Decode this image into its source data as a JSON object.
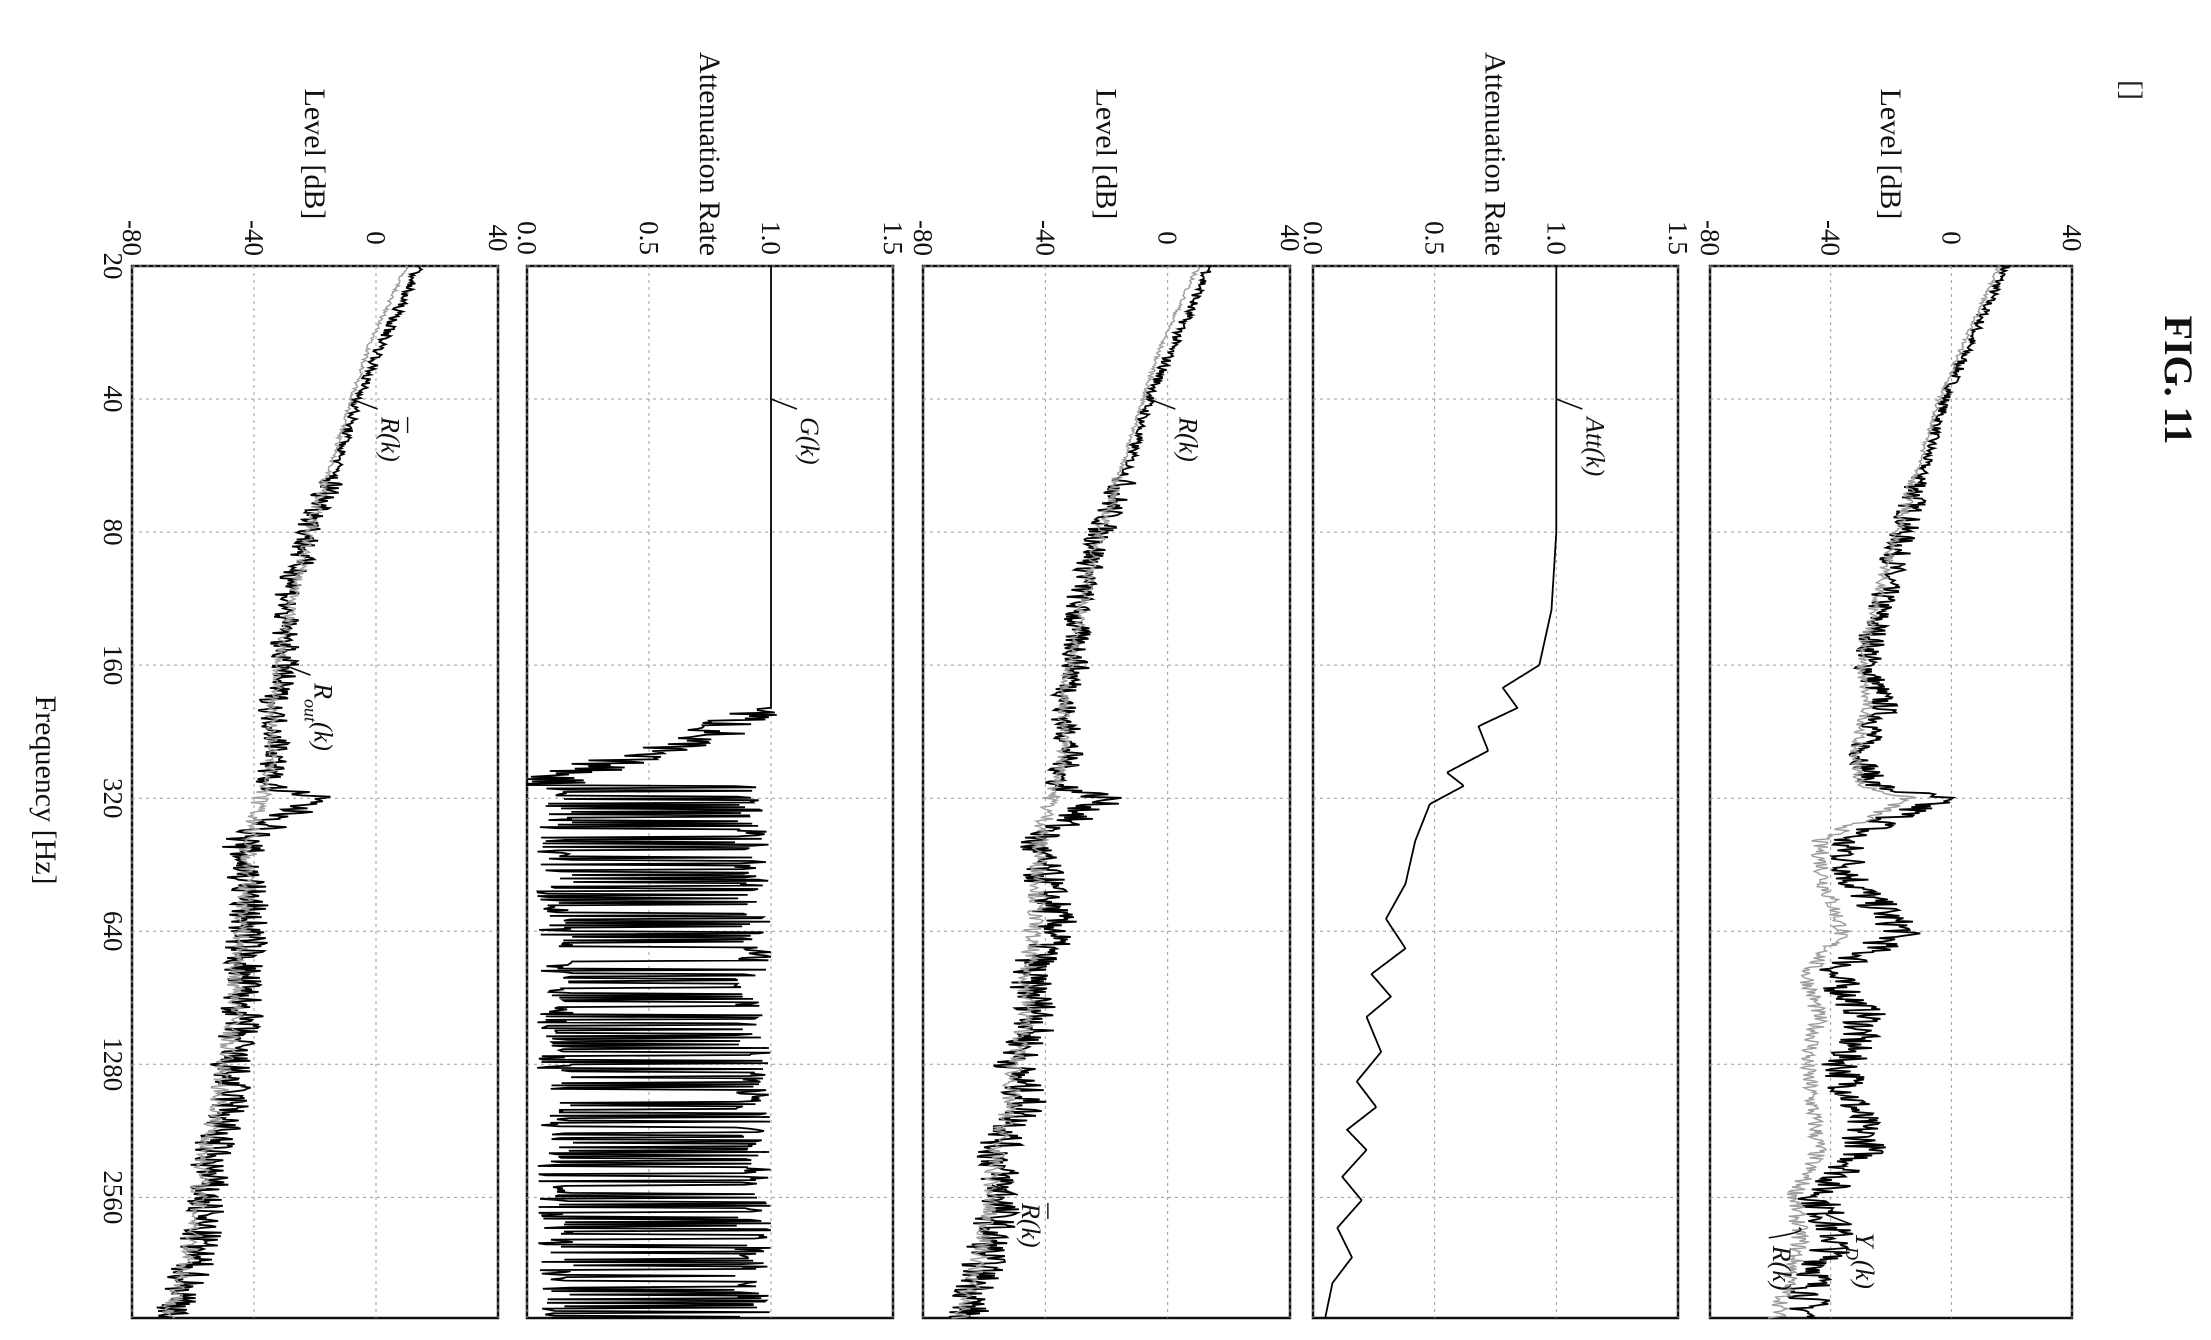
{
  "figure": {
    "title": "FIG. 11",
    "corner_mark": "[]",
    "x_axis_label": "Frequency [Hz]",
    "x_ticks": [
      "20",
      "40",
      "80",
      "160",
      "320",
      "640",
      "1280",
      "2560"
    ]
  },
  "chart_data": [
    {
      "type": "line",
      "panel": 1,
      "ylabel": "Level [dB]",
      "ylim": [
        -80,
        40
      ],
      "yticks": [
        "-80",
        "-40",
        "0",
        "40"
      ],
      "xscale": "log2",
      "xlim": [
        20,
        4800
      ],
      "grid": true,
      "series": [
        {
          "name": "Y_D(k)",
          "label_main": "Y",
          "label_sub": "D",
          "label_end": "(k)",
          "color": "#000000",
          "x": [
            20,
            30,
            40,
            60,
            80,
            120,
            160,
            200,
            250,
            300,
            320,
            400,
            500,
            640,
            800,
            1000,
            1280,
            1600,
            2000,
            2560,
            3200,
            4000,
            4800
          ],
          "y": [
            18,
            6,
            -2,
            -10,
            -16,
            -24,
            -28,
            -22,
            -30,
            -26,
            -4,
            -36,
            -32,
            -16,
            -40,
            -28,
            -36,
            -32,
            -28,
            -44,
            -38,
            -46,
            -48
          ]
        },
        {
          "name": "R(k)",
          "label_main": "R",
          "label_sub": "",
          "label_end": "(k)",
          "color": "#9c9c9c",
          "x": [
            20,
            30,
            40,
            60,
            80,
            120,
            160,
            200,
            250,
            300,
            320,
            400,
            500,
            640,
            800,
            1000,
            1280,
            1600,
            2000,
            2560,
            3200,
            4000,
            4800
          ],
          "y": [
            16,
            4,
            -4,
            -12,
            -18,
            -26,
            -30,
            -28,
            -32,
            -30,
            -14,
            -44,
            -42,
            -36,
            -48,
            -44,
            -48,
            -46,
            -44,
            -52,
            -50,
            -54,
            -58
          ]
        }
      ]
    },
    {
      "type": "line",
      "panel": 2,
      "ylabel": "Attenuation Rate",
      "ylim": [
        0.0,
        1.5
      ],
      "yticks": [
        "1.5",
        "1.0",
        "0.5",
        "0.0"
      ],
      "xscale": "log2",
      "xlim": [
        20,
        4800
      ],
      "grid": true,
      "series": [
        {
          "name": "Att(k)",
          "label_main": "Att",
          "label_sub": "",
          "label_end": "(k)",
          "color": "#000000",
          "x": [
            20,
            40,
            80,
            120,
            160,
            180,
            200,
            220,
            250,
            280,
            300,
            330,
            400,
            500,
            600,
            700,
            800,
            900,
            1000,
            1200,
            1400,
            1600,
            1800,
            2000,
            2300,
            2600,
            3000,
            3500,
            4000,
            4800
          ],
          "y": [
            1.0,
            1.0,
            1.0,
            0.98,
            0.93,
            0.78,
            0.84,
            0.68,
            0.72,
            0.55,
            0.62,
            0.48,
            0.42,
            0.38,
            0.3,
            0.38,
            0.24,
            0.32,
            0.22,
            0.28,
            0.18,
            0.26,
            0.14,
            0.22,
            0.12,
            0.2,
            0.1,
            0.16,
            0.08,
            0.05
          ]
        }
      ]
    },
    {
      "type": "line",
      "panel": 3,
      "ylabel": "Level [dB]",
      "ylim": [
        -80,
        40
      ],
      "yticks": [
        "-80",
        "-40",
        "0",
        "40"
      ],
      "xscale": "log2",
      "xlim": [
        20,
        4800
      ],
      "grid": true,
      "series": [
        {
          "name": "R(k) level",
          "label_main": "R",
          "label_sub": "",
          "label_end": "(k)",
          "color": "#000000",
          "x": [
            20,
            30,
            40,
            60,
            80,
            120,
            160,
            200,
            250,
            300,
            320,
            400,
            500,
            640,
            800,
            1000,
            1280,
            1600,
            2000,
            2560,
            3200,
            4000,
            4800
          ],
          "y": [
            14,
            2,
            -6,
            -14,
            -22,
            -30,
            -30,
            -34,
            -32,
            -36,
            -20,
            -44,
            -40,
            -36,
            -46,
            -42,
            -50,
            -46,
            -56,
            -54,
            -58,
            -62,
            -66
          ]
        },
        {
          "name": "R-bar(k)",
          "label_main": "R",
          "label_sub": "",
          "label_end": "(k)",
          "label_bar": true,
          "color": "#9c9c9c",
          "x": [
            20,
            30,
            40,
            60,
            80,
            120,
            160,
            200,
            250,
            300,
            320,
            400,
            500,
            640,
            800,
            1000,
            1280,
            1600,
            2000,
            2560,
            3200,
            4000,
            4800
          ],
          "y": [
            10,
            -2,
            -8,
            -16,
            -22,
            -28,
            -32,
            -34,
            -34,
            -36,
            -38,
            -42,
            -42,
            -44,
            -46,
            -46,
            -50,
            -52,
            -56,
            -58,
            -60,
            -64,
            -68
          ]
        }
      ]
    },
    {
      "type": "line",
      "panel": 4,
      "ylabel": "Attenuation Rate",
      "ylim": [
        0.0,
        1.5
      ],
      "yticks": [
        "1.5",
        "1.0",
        "0.5",
        "0.0"
      ],
      "xscale": "log2",
      "xlim": [
        20,
        4800
      ],
      "grid": true,
      "series": [
        {
          "name": "G(k)",
          "label_main": "G",
          "label_sub": "",
          "label_end": "(k)",
          "color": "#000000",
          "x": [
            20,
            40,
            80,
            160,
            200,
            210,
            230,
            260,
            290,
            320,
            360,
            400,
            460,
            520,
            600,
            640,
            700,
            800,
            900,
            1000,
            1100,
            1280,
            1450,
            1600,
            1800,
            2000,
            2300,
            2560,
            2900,
            3300,
            3800,
            4300,
            4800
          ],
          "y": [
            1.0,
            1.0,
            1.0,
            1.0,
            1.0,
            0.88,
            0.75,
            0.4,
            0.12,
            0.05,
            0.9,
            0.05,
            0.9,
            0.05,
            0.9,
            0.05,
            0.9,
            0.05,
            0.9,
            0.05,
            0.9,
            0.05,
            0.9,
            0.05,
            0.9,
            0.05,
            0.9,
            0.05,
            0.9,
            0.05,
            0.9,
            0.05,
            0.9
          ]
        }
      ]
    },
    {
      "type": "line",
      "panel": 5,
      "ylabel": "Level [dB]",
      "ylim": [
        -80,
        40
      ],
      "yticks": [
        "-80",
        "-40",
        "0",
        "40"
      ],
      "xscale": "log2",
      "xlim": [
        20,
        4800
      ],
      "grid": true,
      "series": [
        {
          "name": "R_out(k)",
          "label_main": "R",
          "label_sub": "out",
          "label_end": "(k)",
          "color": "#000000",
          "x": [
            20,
            30,
            40,
            60,
            80,
            120,
            160,
            200,
            250,
            300,
            320,
            400,
            500,
            640,
            800,
            1000,
            1280,
            1600,
            2000,
            2560,
            3200,
            4000,
            4800
          ],
          "y": [
            14,
            2,
            -6,
            -14,
            -22,
            -30,
            -30,
            -34,
            -32,
            -36,
            -20,
            -44,
            -42,
            -42,
            -44,
            -44,
            -48,
            -48,
            -54,
            -56,
            -58,
            -62,
            -66
          ]
        },
        {
          "name": "R-bar(k)",
          "label_main": "R",
          "label_sub": "",
          "label_end": "(k)",
          "label_bar": true,
          "color": "#9c9c9c",
          "x": [
            20,
            30,
            40,
            60,
            80,
            120,
            160,
            200,
            250,
            300,
            320,
            400,
            500,
            640,
            800,
            1000,
            1280,
            1600,
            2000,
            2560,
            3200,
            4000,
            4800
          ],
          "y": [
            10,
            -2,
            -8,
            -16,
            -22,
            -28,
            -32,
            -34,
            -34,
            -36,
            -38,
            -42,
            -42,
            -44,
            -46,
            -46,
            -50,
            -52,
            -56,
            -58,
            -60,
            -64,
            -68
          ]
        }
      ]
    }
  ]
}
